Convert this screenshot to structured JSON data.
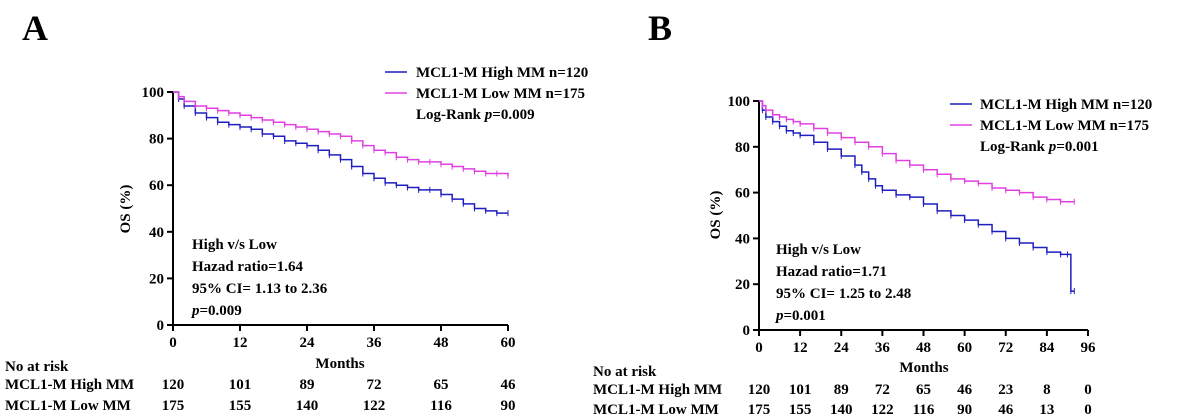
{
  "chart_data": [
    {
      "type": "line",
      "panel_label": "A",
      "ylabel": "OS (%)",
      "xlabel": "Months",
      "xlim": [
        0,
        60
      ],
      "ylim": [
        0,
        100
      ],
      "xticks": [
        0,
        12,
        24,
        36,
        48,
        60
      ],
      "yticks": [
        0,
        20,
        40,
        60,
        80,
        100
      ],
      "legend_position": "top-right",
      "series": [
        {
          "name": "MCL1-M High MM n=120",
          "color": "#1f1fbf",
          "x": [
            0,
            1,
            2,
            4,
            6,
            8,
            10,
            12,
            14,
            16,
            18,
            20,
            22,
            24,
            26,
            28,
            30,
            32,
            34,
            36,
            38,
            40,
            42,
            44,
            46,
            48,
            50,
            52,
            54,
            56,
            58,
            60
          ],
          "y": [
            100,
            97,
            94,
            91,
            89,
            87,
            86,
            85,
            84,
            82,
            81,
            79,
            78,
            77,
            75,
            73,
            71,
            68,
            65,
            63,
            61,
            60,
            59,
            58,
            58,
            56,
            54,
            52,
            50,
            49,
            48,
            48
          ]
        },
        {
          "name": "MCL1-M Low MM n=175",
          "color": "#e040e0",
          "x": [
            0,
            1,
            2,
            4,
            6,
            8,
            10,
            12,
            14,
            16,
            18,
            20,
            22,
            24,
            26,
            28,
            30,
            32,
            34,
            36,
            38,
            40,
            42,
            44,
            46,
            48,
            50,
            52,
            54,
            56,
            58,
            60
          ],
          "y": [
            100,
            98,
            96,
            94,
            93,
            92,
            91,
            90,
            89,
            88,
            87,
            86,
            85,
            84,
            83,
            82,
            81,
            79,
            77,
            75,
            74,
            72,
            71,
            70,
            70,
            69,
            68,
            67,
            66,
            65,
            65,
            64
          ]
        }
      ],
      "legend_note": "Log-Rank ",
      "legend_p_symbol": "p",
      "legend_p_value": "=0.009",
      "stats": {
        "line1": "High v/s Low",
        "line2": "Hazad ratio=1.64",
        "line3": "95% CI= 1.13 to 2.36",
        "p_symbol": "p",
        "p_value": "=0.009"
      },
      "risk_table": {
        "title": "No at risk",
        "rows": [
          {
            "label": "MCL1-M High MM",
            "values": [
              "120",
              "101",
              "89",
              "72",
              "65",
              "46"
            ]
          },
          {
            "label": "MCL1-M Low MM",
            "values": [
              "175",
              "155",
              "140",
              "122",
              "116",
              "90"
            ]
          }
        ]
      }
    },
    {
      "type": "line",
      "panel_label": "B",
      "ylabel": "OS (%)",
      "xlabel": "Months",
      "xlim": [
        0,
        96
      ],
      "ylim": [
        0,
        100
      ],
      "xticks": [
        0,
        12,
        24,
        36,
        48,
        60,
        72,
        84,
        96
      ],
      "yticks": [
        0,
        20,
        40,
        60,
        80,
        100
      ],
      "legend_position": "top-right",
      "series": [
        {
          "name": "MCL1-M High MM n=120",
          "color": "#1f1fbf",
          "x": [
            0,
            1,
            2,
            4,
            6,
            8,
            10,
            12,
            16,
            20,
            24,
            28,
            30,
            32,
            34,
            36,
            40,
            44,
            48,
            52,
            56,
            60,
            64,
            68,
            72,
            76,
            80,
            84,
            88,
            90,
            91,
            92
          ],
          "y": [
            100,
            96,
            93,
            91,
            89,
            87,
            86,
            85,
            82,
            79,
            76,
            72,
            69,
            66,
            63,
            61,
            59,
            58,
            55,
            52,
            50,
            48,
            46,
            43,
            40,
            38,
            36,
            34,
            33,
            33,
            17,
            17
          ]
        },
        {
          "name": "MCL1-M Low MM n=175",
          "color": "#e040e0",
          "x": [
            0,
            1,
            2,
            4,
            6,
            8,
            10,
            12,
            16,
            20,
            24,
            28,
            32,
            36,
            40,
            44,
            48,
            52,
            56,
            60,
            64,
            68,
            72,
            76,
            80,
            84,
            88,
            92
          ],
          "y": [
            100,
            98,
            96,
            94,
            93,
            92,
            91,
            90,
            88,
            86,
            84,
            82,
            80,
            77,
            74,
            72,
            70,
            68,
            66,
            65,
            64,
            62,
            61,
            60,
            58,
            57,
            56,
            56
          ]
        }
      ],
      "legend_note": "Log-Rank ",
      "legend_p_symbol": "p",
      "legend_p_value": "=0.001",
      "stats": {
        "line1": "High v/s Low",
        "line2": "Hazad ratio=1.71",
        "line3": "95% CI= 1.25 to 2.48",
        "p_symbol": "p",
        "p_value": "=0.001"
      },
      "risk_table": {
        "title": "No at risk",
        "rows": [
          {
            "label": "MCL1-M High MM",
            "values": [
              "120",
              "101",
              "89",
              "72",
              "65",
              "46",
              "23",
              "8",
              "0"
            ]
          },
          {
            "label": "MCL1-M Low MM",
            "values": [
              "175",
              "155",
              "140",
              "122",
              "116",
              "90",
              "46",
              "13",
              "0"
            ]
          }
        ]
      }
    }
  ]
}
